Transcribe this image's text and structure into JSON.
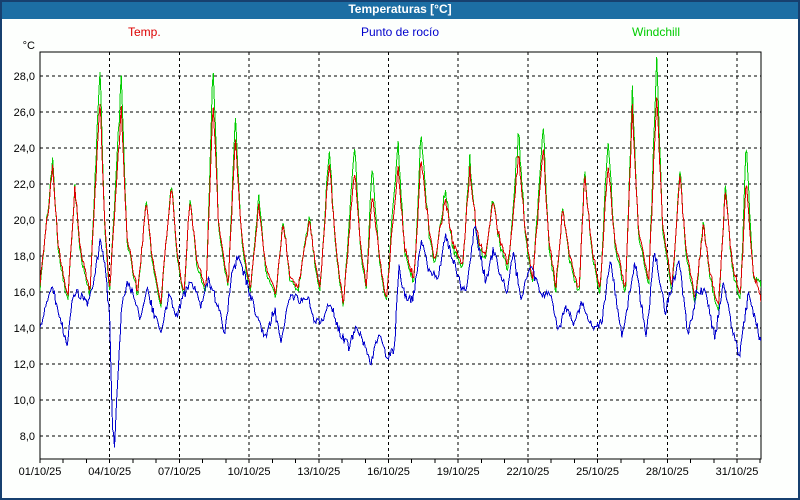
{
  "window": {
    "title": "Temperaturas [°C]"
  },
  "chart_data": {
    "type": "line",
    "title": "Temperaturas [°C]",
    "y_unit": "°C",
    "ylabel": "",
    "xlabel": "",
    "grid": "dashed",
    "legend_position": "top",
    "x_days": 31,
    "ylim": [
      6.7,
      29.3
    ],
    "x_tick_days": [
      0,
      3,
      6,
      9,
      12,
      15,
      18,
      21,
      24,
      27,
      30
    ],
    "x_tick_labels": [
      "01/10/25",
      "04/10/25",
      "07/10/25",
      "10/10/25",
      "13/10/25",
      "16/10/25",
      "19/10/25",
      "22/10/25",
      "25/10/25",
      "28/10/25",
      "31/10/25"
    ],
    "y_ticks": [
      {
        "value": 28,
        "label": "28,0"
      },
      {
        "value": 26,
        "label": "26,0"
      },
      {
        "value": 24,
        "label": "24,0"
      },
      {
        "value": 22,
        "label": "22,0"
      },
      {
        "value": 20,
        "label": "20,0"
      },
      {
        "value": 18,
        "label": "18,0"
      },
      {
        "value": 16,
        "label": "16,0"
      },
      {
        "value": 14,
        "label": "14,0"
      },
      {
        "value": 12,
        "label": "12,0"
      },
      {
        "value": 10,
        "label": "10,0"
      },
      {
        "value": 8,
        "label": "8,0"
      }
    ],
    "series": [
      {
        "name": "Temp.",
        "color": "#dd0000",
        "points": [
          [
            0,
            16.5
          ],
          [
            0.55,
            22.9
          ],
          [
            0.8,
            18.5
          ],
          [
            1.2,
            15.6
          ],
          [
            1.5,
            21.9
          ],
          [
            1.75,
            18.3
          ],
          [
            2.15,
            16.0
          ],
          [
            2.58,
            26.6
          ],
          [
            2.8,
            19.5
          ],
          [
            3.0,
            16.2
          ],
          [
            3.5,
            26.0
          ],
          [
            3.75,
            19.0
          ],
          [
            4.2,
            16.0
          ],
          [
            4.58,
            21.0
          ],
          [
            4.85,
            17.8
          ],
          [
            5.2,
            15.4
          ],
          [
            5.65,
            22.0
          ],
          [
            5.9,
            18.0
          ],
          [
            6.2,
            15.8
          ],
          [
            6.45,
            21.3
          ],
          [
            6.75,
            17.8
          ],
          [
            7.15,
            16.2
          ],
          [
            7.45,
            26.5
          ],
          [
            7.7,
            19.5
          ],
          [
            8.1,
            16.4
          ],
          [
            8.4,
            24.4
          ],
          [
            8.7,
            18.8
          ],
          [
            9.05,
            16.2
          ],
          [
            9.43,
            20.9
          ],
          [
            9.7,
            17.5
          ],
          [
            10.14,
            15.9
          ],
          [
            10.47,
            19.9
          ],
          [
            10.75,
            17.0
          ],
          [
            11.1,
            16.2
          ],
          [
            11.6,
            20.0
          ],
          [
            11.85,
            17.5
          ],
          [
            12.04,
            16.1
          ],
          [
            12.45,
            23.3
          ],
          [
            12.7,
            19.0
          ],
          [
            13.05,
            15.3
          ],
          [
            13.55,
            23.0
          ],
          [
            13.8,
            18.5
          ],
          [
            14.05,
            16.3
          ],
          [
            14.3,
            21.6
          ],
          [
            14.6,
            18.0
          ],
          [
            14.9,
            15.6
          ],
          [
            15.4,
            22.9
          ],
          [
            15.7,
            18.5
          ],
          [
            16.1,
            16.7
          ],
          [
            16.4,
            23.3
          ],
          [
            16.75,
            19.5
          ],
          [
            17.0,
            17.8
          ],
          [
            17.45,
            21.2
          ],
          [
            17.75,
            18.8
          ],
          [
            18.2,
            17.5
          ],
          [
            18.5,
            22.8
          ],
          [
            18.8,
            19.3
          ],
          [
            19.15,
            18.0
          ],
          [
            19.5,
            21.1
          ],
          [
            19.8,
            18.8
          ],
          [
            20.15,
            17.5
          ],
          [
            20.6,
            23.6
          ],
          [
            20.9,
            19.3
          ],
          [
            21.2,
            16.6
          ],
          [
            21.65,
            24.1
          ],
          [
            21.9,
            19.0
          ],
          [
            22.2,
            16.3
          ],
          [
            22.5,
            20.6
          ],
          [
            22.8,
            18.0
          ],
          [
            23.2,
            16.0
          ],
          [
            23.45,
            22.5
          ],
          [
            23.75,
            18.5
          ],
          [
            24.1,
            16.0
          ],
          [
            24.45,
            23.2
          ],
          [
            24.75,
            18.8
          ],
          [
            25.2,
            16.2
          ],
          [
            25.5,
            26.1
          ],
          [
            25.75,
            19.5
          ],
          [
            26.2,
            16.6
          ],
          [
            26.55,
            26.8
          ],
          [
            26.8,
            19.8
          ],
          [
            27.2,
            16.3
          ],
          [
            27.55,
            22.4
          ],
          [
            27.8,
            18.5
          ],
          [
            28.2,
            15.6
          ],
          [
            28.55,
            19.7
          ],
          [
            28.85,
            17.0
          ],
          [
            29.2,
            15.2
          ],
          [
            29.5,
            21.5
          ],
          [
            29.8,
            17.5
          ],
          [
            30.15,
            15.8
          ],
          [
            30.4,
            22.2
          ],
          [
            30.7,
            17.0
          ],
          [
            31.03,
            15.6
          ]
        ]
      },
      {
        "name": "Punto de rocío",
        "color": "#0000cc",
        "points": [
          [
            0,
            13.8
          ],
          [
            0.3,
            15.6
          ],
          [
            0.55,
            16.3
          ],
          [
            0.8,
            14.8
          ],
          [
            1.15,
            13.1
          ],
          [
            1.45,
            15.9
          ],
          [
            1.7,
            15.9
          ],
          [
            2.0,
            15.3
          ],
          [
            2.3,
            16.3
          ],
          [
            2.6,
            18.9
          ],
          [
            2.8,
            17.4
          ],
          [
            3.0,
            14.5
          ],
          [
            3.12,
            8.6
          ],
          [
            3.22,
            7.5
          ],
          [
            3.32,
            10.5
          ],
          [
            3.5,
            14.8
          ],
          [
            3.7,
            16.4
          ],
          [
            4.0,
            16.1
          ],
          [
            4.3,
            14.5
          ],
          [
            4.6,
            16.2
          ],
          [
            4.9,
            14.8
          ],
          [
            5.2,
            13.7
          ],
          [
            5.55,
            15.8
          ],
          [
            5.9,
            14.7
          ],
          [
            6.2,
            15.9
          ],
          [
            6.55,
            16.6
          ],
          [
            6.9,
            15.1
          ],
          [
            7.25,
            16.6
          ],
          [
            7.6,
            15.5
          ],
          [
            7.95,
            13.7
          ],
          [
            8.25,
            16.8
          ],
          [
            8.55,
            18.1
          ],
          [
            9.1,
            15.6
          ],
          [
            9.5,
            14.1
          ],
          [
            9.7,
            13.6
          ],
          [
            10.1,
            15.0
          ],
          [
            10.4,
            13.3
          ],
          [
            10.7,
            15.5
          ],
          [
            11.0,
            15.8
          ],
          [
            11.3,
            15.4
          ],
          [
            11.55,
            15.8
          ],
          [
            11.85,
            14.2
          ],
          [
            12.2,
            14.6
          ],
          [
            12.45,
            15.5
          ],
          [
            12.9,
            13.8
          ],
          [
            13.3,
            12.9
          ],
          [
            13.6,
            14.3
          ],
          [
            13.95,
            13.2
          ],
          [
            14.25,
            12.1
          ],
          [
            14.6,
            13.6
          ],
          [
            14.9,
            12.4
          ],
          [
            15.25,
            12.8
          ],
          [
            15.45,
            17.3
          ],
          [
            15.7,
            15.8
          ],
          [
            16.05,
            15.5
          ],
          [
            16.4,
            18.8
          ],
          [
            16.7,
            17.4
          ],
          [
            17.1,
            16.7
          ],
          [
            17.45,
            19.0
          ],
          [
            17.8,
            17.7
          ],
          [
            18.1,
            16.4
          ],
          [
            18.35,
            15.8
          ],
          [
            18.7,
            19.7
          ],
          [
            19.2,
            16.5
          ],
          [
            19.5,
            18.3
          ],
          [
            19.8,
            17.1
          ],
          [
            20.1,
            15.9
          ],
          [
            20.35,
            18.2
          ],
          [
            20.7,
            15.7
          ],
          [
            21.1,
            17.6
          ],
          [
            21.6,
            15.7
          ],
          [
            21.9,
            16.1
          ],
          [
            22.3,
            13.9
          ],
          [
            22.65,
            15.1
          ],
          [
            23.0,
            14.3
          ],
          [
            23.35,
            15.4
          ],
          [
            23.8,
            14.0
          ],
          [
            24.2,
            14.4
          ],
          [
            24.55,
            17.9
          ],
          [
            25.05,
            13.4
          ],
          [
            25.6,
            17.7
          ],
          [
            26.1,
            13.5
          ],
          [
            26.45,
            18.3
          ],
          [
            26.9,
            14.9
          ],
          [
            27.5,
            17.7
          ],
          [
            27.9,
            13.6
          ],
          [
            28.3,
            16.2
          ],
          [
            28.65,
            15.9
          ],
          [
            29.05,
            13.4
          ],
          [
            29.4,
            16.6
          ],
          [
            29.75,
            14.3
          ],
          [
            30.1,
            12.4
          ],
          [
            30.5,
            16.0
          ],
          [
            31.0,
            13.3
          ]
        ]
      },
      {
        "name": "Windchill",
        "color": "#00cc00",
        "points": [
          [
            0,
            16.2
          ],
          [
            0.55,
            23.3
          ],
          [
            0.8,
            18.2
          ],
          [
            1.2,
            15.4
          ],
          [
            1.5,
            22.0
          ],
          [
            1.75,
            18.0
          ],
          [
            2.15,
            15.8
          ],
          [
            2.58,
            28.4
          ],
          [
            2.8,
            19.2
          ],
          [
            3.0,
            16.0
          ],
          [
            3.5,
            27.7
          ],
          [
            3.75,
            18.8
          ],
          [
            4.2,
            15.8
          ],
          [
            4.58,
            21.1
          ],
          [
            4.85,
            17.5
          ],
          [
            5.2,
            15.2
          ],
          [
            5.65,
            22.2
          ],
          [
            5.9,
            17.8
          ],
          [
            6.2,
            15.6
          ],
          [
            6.45,
            21.5
          ],
          [
            6.75,
            17.5
          ],
          [
            7.15,
            16.0
          ],
          [
            7.45,
            28.6
          ],
          [
            7.7,
            19.2
          ],
          [
            8.1,
            16.2
          ],
          [
            8.4,
            25.7
          ],
          [
            8.7,
            18.5
          ],
          [
            9.05,
            16.0
          ],
          [
            9.43,
            21.5
          ],
          [
            9.7,
            17.2
          ],
          [
            10.14,
            15.7
          ],
          [
            10.47,
            20.1
          ],
          [
            10.75,
            16.8
          ],
          [
            11.1,
            16.0
          ],
          [
            11.6,
            20.3
          ],
          [
            11.85,
            17.2
          ],
          [
            12.04,
            15.9
          ],
          [
            12.45,
            24.0
          ],
          [
            12.7,
            18.8
          ],
          [
            13.05,
            15.1
          ],
          [
            13.55,
            24.5
          ],
          [
            13.8,
            18.2
          ],
          [
            14.05,
            16.1
          ],
          [
            14.3,
            23.3
          ],
          [
            14.6,
            17.8
          ],
          [
            14.9,
            15.4
          ],
          [
            15.4,
            24.4
          ],
          [
            15.7,
            18.2
          ],
          [
            16.1,
            16.5
          ],
          [
            16.4,
            24.7
          ],
          [
            16.75,
            19.2
          ],
          [
            17.0,
            17.6
          ],
          [
            17.45,
            21.7
          ],
          [
            17.75,
            18.5
          ],
          [
            18.2,
            17.3
          ],
          [
            18.5,
            23.4
          ],
          [
            18.8,
            19.0
          ],
          [
            19.15,
            17.8
          ],
          [
            19.5,
            21.3
          ],
          [
            19.8,
            18.5
          ],
          [
            20.15,
            17.2
          ],
          [
            20.6,
            24.9
          ],
          [
            20.9,
            19.0
          ],
          [
            21.2,
            16.4
          ],
          [
            21.65,
            25.4
          ],
          [
            21.9,
            18.7
          ],
          [
            22.2,
            16.0
          ],
          [
            22.5,
            20.8
          ],
          [
            22.8,
            17.7
          ],
          [
            23.2,
            15.8
          ],
          [
            23.45,
            22.8
          ],
          [
            23.75,
            18.2
          ],
          [
            24.1,
            15.7
          ],
          [
            24.45,
            24.7
          ],
          [
            24.75,
            18.5
          ],
          [
            25.2,
            15.9
          ],
          [
            25.5,
            27.2
          ],
          [
            25.75,
            19.2
          ],
          [
            26.2,
            16.3
          ],
          [
            26.55,
            28.9
          ],
          [
            26.8,
            19.5
          ],
          [
            27.2,
            16.0
          ],
          [
            27.55,
            22.7
          ],
          [
            27.8,
            18.2
          ],
          [
            28.2,
            15.3
          ],
          [
            28.55,
            19.9
          ],
          [
            28.85,
            16.7
          ],
          [
            29.2,
            14.9
          ],
          [
            29.5,
            21.8
          ],
          [
            29.8,
            17.2
          ],
          [
            30.15,
            15.5
          ],
          [
            30.4,
            24.3
          ],
          [
            30.7,
            16.8
          ],
          [
            31.03,
            16.4
          ]
        ]
      }
    ],
    "colors": {
      "titlebar": "#1c6ea4",
      "frame": "#17406f",
      "plot_border": "#000000",
      "gridline": "#000000",
      "background": "#fdfffd"
    }
  }
}
